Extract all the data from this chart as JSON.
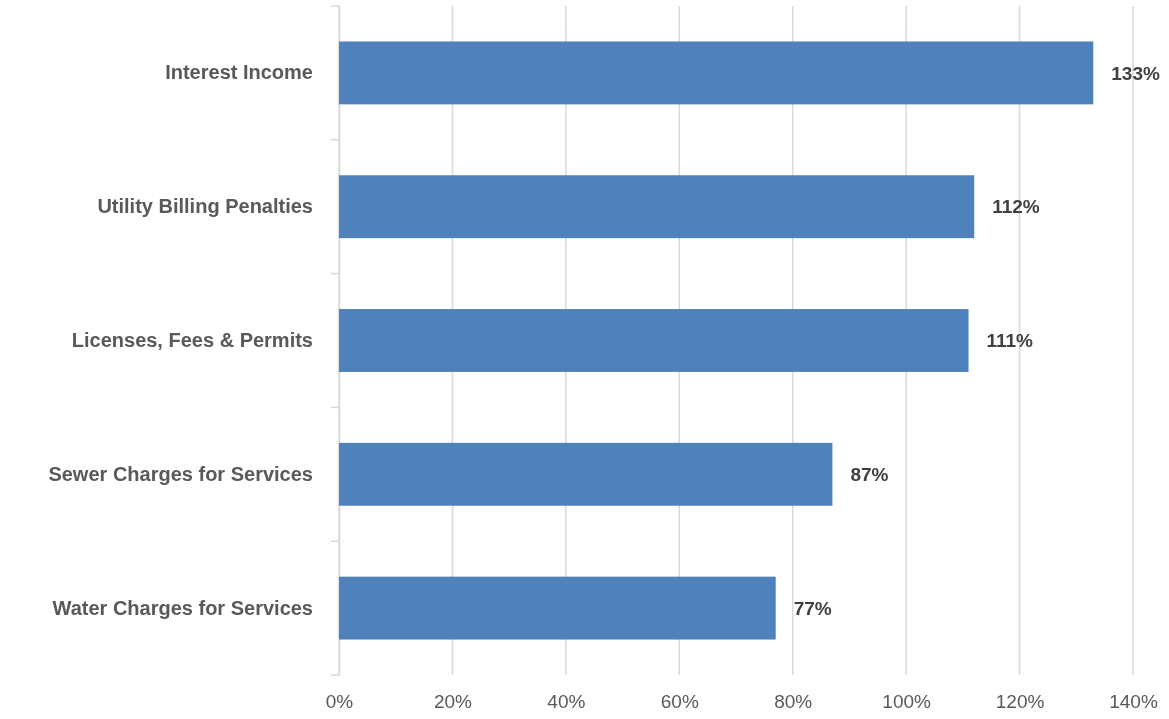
{
  "chart_data": {
    "type": "bar",
    "orientation": "horizontal",
    "categories": [
      "Interest Income",
      "Utility Billing Penalties",
      "Licenses, Fees & Permits",
      "Sewer Charges for Services",
      "Water Charges for Services"
    ],
    "values": [
      133,
      112,
      111,
      87,
      77
    ],
    "value_labels": [
      "133%",
      "112%",
      "111%",
      "87%",
      "77%"
    ],
    "color": "#4f81bd",
    "xlim": [
      0,
      140
    ],
    "xticks": [
      {
        "value": 0,
        "label": "0%"
      },
      {
        "value": 20,
        "label": "20%"
      },
      {
        "value": 40,
        "label": "40%"
      },
      {
        "value": 60,
        "label": "60%"
      },
      {
        "value": 80,
        "label": "80%"
      },
      {
        "value": 100,
        "label": "100%"
      },
      {
        "value": 120,
        "label": "120%"
      },
      {
        "value": 140,
        "label": "140%"
      }
    ],
    "grid": "x"
  }
}
